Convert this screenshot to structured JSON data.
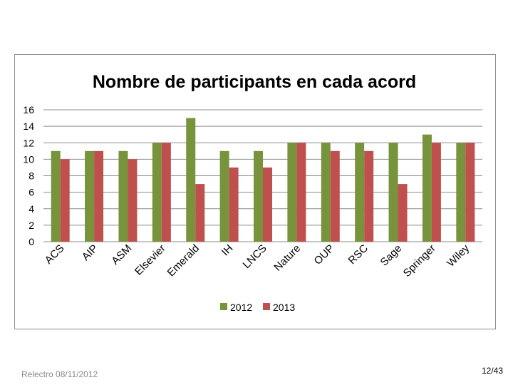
{
  "footer": {
    "left_text": "Relectro 08/11/2012",
    "page_number": "12/43"
  },
  "colors": {
    "series_2012": "#77933c",
    "series_2013": "#c0504d",
    "gridline": "#8c8c8c",
    "frame": "#8c8c8c"
  },
  "chart_data": {
    "type": "bar",
    "title": "Nombre de participants en cada acord",
    "xlabel": "",
    "ylabel": "",
    "ylim": [
      0,
      16
    ],
    "yticks": [
      0,
      2,
      4,
      6,
      8,
      10,
      12,
      14,
      16
    ],
    "grid": true,
    "legend_position": "bottom",
    "categories": [
      "ACS",
      "AIP",
      "ASM",
      "Elsevier",
      "Emerald",
      "IH",
      "LNCS",
      "Nature",
      "OUP",
      "RSC",
      "Sage",
      "Springer",
      "Wiley"
    ],
    "series": [
      {
        "name": "2012",
        "color": "#77933c",
        "values": [
          11,
          11,
          11,
          12,
          15,
          11,
          11,
          12,
          12,
          12,
          12,
          13,
          12
        ]
      },
      {
        "name": "2013",
        "color": "#c0504d",
        "values": [
          10,
          11,
          10,
          12,
          7,
          9,
          9,
          12,
          11,
          11,
          7,
          12,
          12
        ]
      }
    ]
  }
}
